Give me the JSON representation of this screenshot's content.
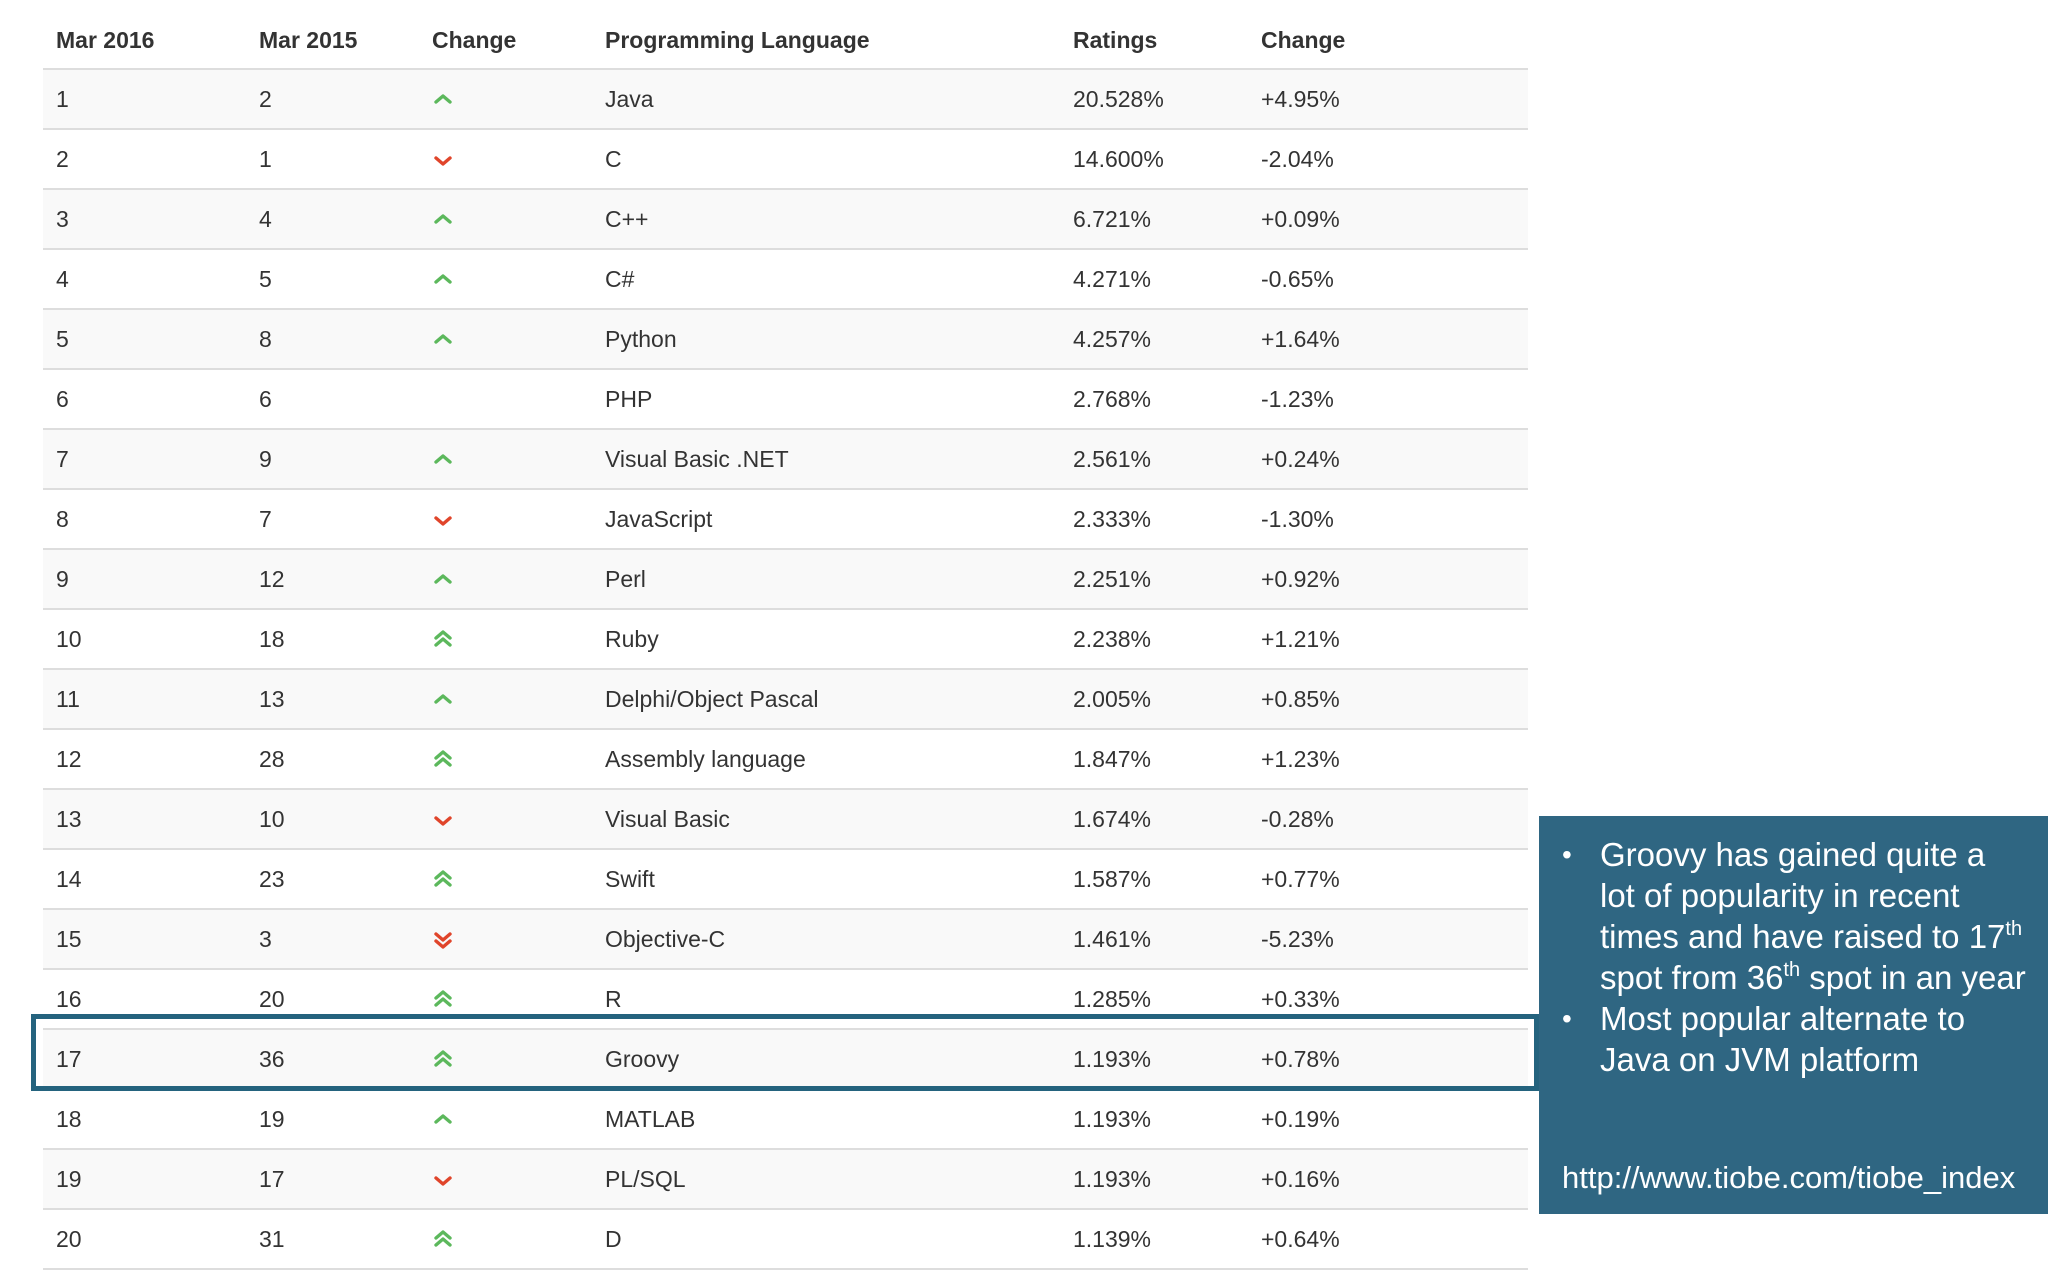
{
  "table": {
    "headers": [
      "Mar 2016",
      "Mar 2015",
      "Change",
      "Programming Language",
      "Ratings",
      "Change"
    ],
    "rows": [
      {
        "rank_2016": "1",
        "rank_2015": "2",
        "trend": "up",
        "language": "Java",
        "rating": "20.528%",
        "change": "+4.95%"
      },
      {
        "rank_2016": "2",
        "rank_2015": "1",
        "trend": "down",
        "language": "C",
        "rating": "14.600%",
        "change": "-2.04%"
      },
      {
        "rank_2016": "3",
        "rank_2015": "4",
        "trend": "up",
        "language": "C++",
        "rating": "6.721%",
        "change": "+0.09%"
      },
      {
        "rank_2016": "4",
        "rank_2015": "5",
        "trend": "up",
        "language": "C#",
        "rating": "4.271%",
        "change": "-0.65%"
      },
      {
        "rank_2016": "5",
        "rank_2015": "8",
        "trend": "up",
        "language": "Python",
        "rating": "4.257%",
        "change": "+1.64%"
      },
      {
        "rank_2016": "6",
        "rank_2015": "6",
        "trend": "none",
        "language": "PHP",
        "rating": "2.768%",
        "change": "-1.23%"
      },
      {
        "rank_2016": "7",
        "rank_2015": "9",
        "trend": "up",
        "language": "Visual Basic .NET",
        "rating": "2.561%",
        "change": "+0.24%"
      },
      {
        "rank_2016": "8",
        "rank_2015": "7",
        "trend": "down",
        "language": "JavaScript",
        "rating": "2.333%",
        "change": "-1.30%"
      },
      {
        "rank_2016": "9",
        "rank_2015": "12",
        "trend": "up",
        "language": "Perl",
        "rating": "2.251%",
        "change": "+0.92%"
      },
      {
        "rank_2016": "10",
        "rank_2015": "18",
        "trend": "double-up",
        "language": "Ruby",
        "rating": "2.238%",
        "change": "+1.21%"
      },
      {
        "rank_2016": "11",
        "rank_2015": "13",
        "trend": "up",
        "language": "Delphi/Object Pascal",
        "rating": "2.005%",
        "change": "+0.85%"
      },
      {
        "rank_2016": "12",
        "rank_2015": "28",
        "trend": "double-up",
        "language": "Assembly language",
        "rating": "1.847%",
        "change": "+1.23%"
      },
      {
        "rank_2016": "13",
        "rank_2015": "10",
        "trend": "down",
        "language": "Visual Basic",
        "rating": "1.674%",
        "change": "-0.28%"
      },
      {
        "rank_2016": "14",
        "rank_2015": "23",
        "trend": "double-up",
        "language": "Swift",
        "rating": "1.587%",
        "change": "+0.77%"
      },
      {
        "rank_2016": "15",
        "rank_2015": "3",
        "trend": "double-down",
        "language": "Objective-C",
        "rating": "1.461%",
        "change": "-5.23%"
      },
      {
        "rank_2016": "16",
        "rank_2015": "20",
        "trend": "double-up",
        "language": "R",
        "rating": "1.285%",
        "change": "+0.33%"
      },
      {
        "rank_2016": "17",
        "rank_2015": "36",
        "trend": "double-up",
        "language": "Groovy",
        "rating": "1.193%",
        "change": "+0.78%"
      },
      {
        "rank_2016": "18",
        "rank_2015": "19",
        "trend": "up",
        "language": "MATLAB",
        "rating": "1.193%",
        "change": "+0.19%"
      },
      {
        "rank_2016": "19",
        "rank_2015": "17",
        "trend": "down",
        "language": "PL/SQL",
        "rating": "1.193%",
        "change": "+0.16%"
      },
      {
        "rank_2016": "20",
        "rank_2015": "31",
        "trend": "double-up",
        "language": "D",
        "rating": "1.139%",
        "change": "+0.64%"
      }
    ],
    "highlighted_language": "Groovy"
  },
  "callout": {
    "bullets": [
      [
        {
          "text": "Groovy has gained quite a lot of popularity in recent times and have raised to 17"
        },
        {
          "text": "th",
          "sup": true
        },
        {
          "text": " spot from 36"
        },
        {
          "text": "th",
          "sup": true
        },
        {
          "text": " spot in an year"
        }
      ],
      [
        {
          "text": "Most popular alternate to Java on JVM platform"
        }
      ]
    ],
    "source_url": "http://www.tiobe.com/tiobe_index"
  },
  "colors": {
    "up": "#5cb85c",
    "down": "#e0452b",
    "highlight_border": "#24637e",
    "callout_bg": "#2f6682",
    "row_stripe": "#f9f9f9",
    "row_border": "#dddddd"
  },
  "icons": {
    "up": "chevron-up-icon",
    "down": "chevron-down-icon",
    "double-up": "double-chevron-up-icon",
    "double-down": "double-chevron-down-icon"
  }
}
